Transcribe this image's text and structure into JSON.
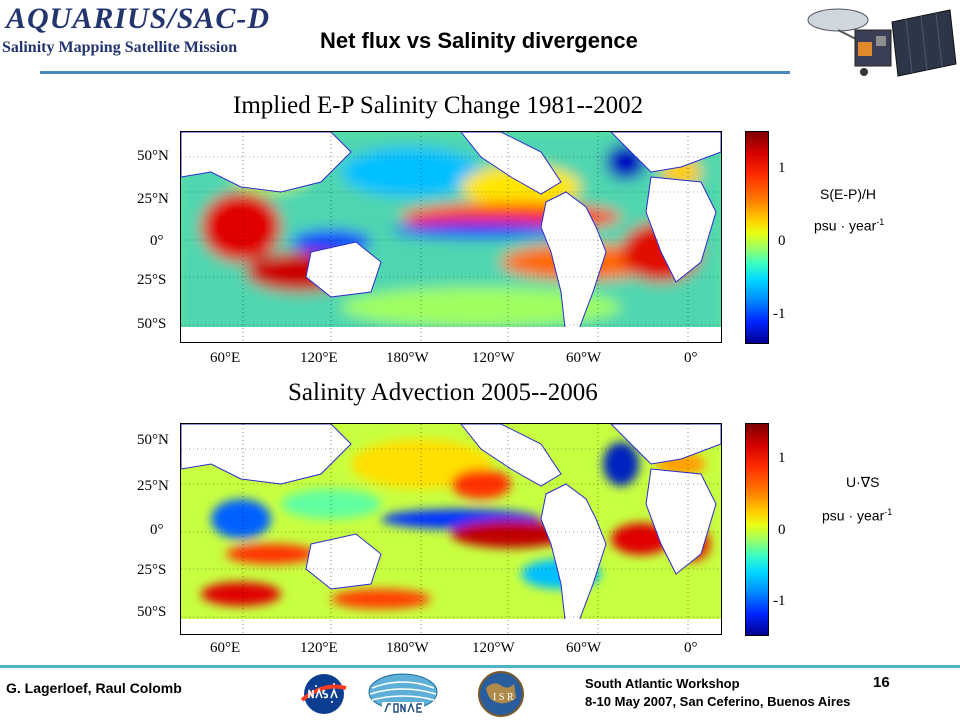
{
  "header": {
    "logo_text": "AQUARIUS/SAC-D",
    "mission_text": "Salinity Mapping Satellite Mission",
    "title": "Net flux vs Salinity divergence"
  },
  "panels": [
    {
      "title": "Implied E-P Salinity Change 1981--2002",
      "lat_labels": [
        "50°N",
        "25°N",
        "0°",
        "25°S",
        "50°S"
      ],
      "lon_labels": [
        "60°E",
        "120°E",
        "180°W",
        "120°W",
        "60°W",
        "0°"
      ],
      "colorbar_ticks": [
        "1",
        "0",
        "-1"
      ],
      "label_line1": "S(E-P)/H",
      "unit_base": "psu · year",
      "unit_exp": "-1"
    },
    {
      "title": "Salinity Advection 2005--2006",
      "lat_labels": [
        "50°N",
        "25°N",
        "0°",
        "25°S",
        "50°S"
      ],
      "lon_labels": [
        "60°E",
        "120°E",
        "180°W",
        "120°W",
        "60°W",
        "0°"
      ],
      "colorbar_ticks": [
        "1",
        "0",
        "-1"
      ],
      "label_line1": "U·∇S",
      "unit_base": "psu · year",
      "unit_exp": "-1"
    }
  ],
  "footer": {
    "authors": "G. Lagerloef, Raul Colomb",
    "workshop_line1": "South Atlantic Workshop",
    "workshop_line2": "8-10 May 2007, San Ceferino, Buenos Aires",
    "page_number": "16",
    "logos": [
      "nasa-logo",
      "conae-logo",
      "isr-logo"
    ]
  }
}
